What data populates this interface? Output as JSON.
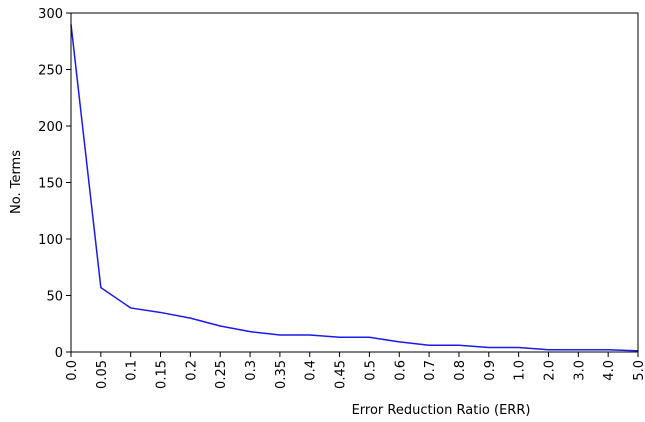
{
  "chart_data": {
    "type": "line",
    "x_label": "Error Reduction Ratio (ERR)",
    "y_label": "No. Terms",
    "categories": [
      "0.0",
      "0.05",
      "0.1",
      "0.15",
      "0.2",
      "0.25",
      "0.3",
      "0.35",
      "0.4",
      "0.45",
      "0.5",
      "0.6",
      "0.7",
      "0.8",
      "0.9",
      "1.0",
      "2.0",
      "3.0",
      "4.0",
      "5.0"
    ],
    "values": [
      290,
      57,
      39,
      35,
      30,
      23,
      18,
      15,
      15,
      13,
      13,
      9,
      6,
      6,
      4,
      4,
      2,
      2,
      2,
      1
    ],
    "color": "#1a1aeb",
    "ylim": [
      0,
      300
    ],
    "yticks": [
      0,
      50,
      100,
      150,
      200,
      250,
      300
    ],
    "grid": false
  }
}
